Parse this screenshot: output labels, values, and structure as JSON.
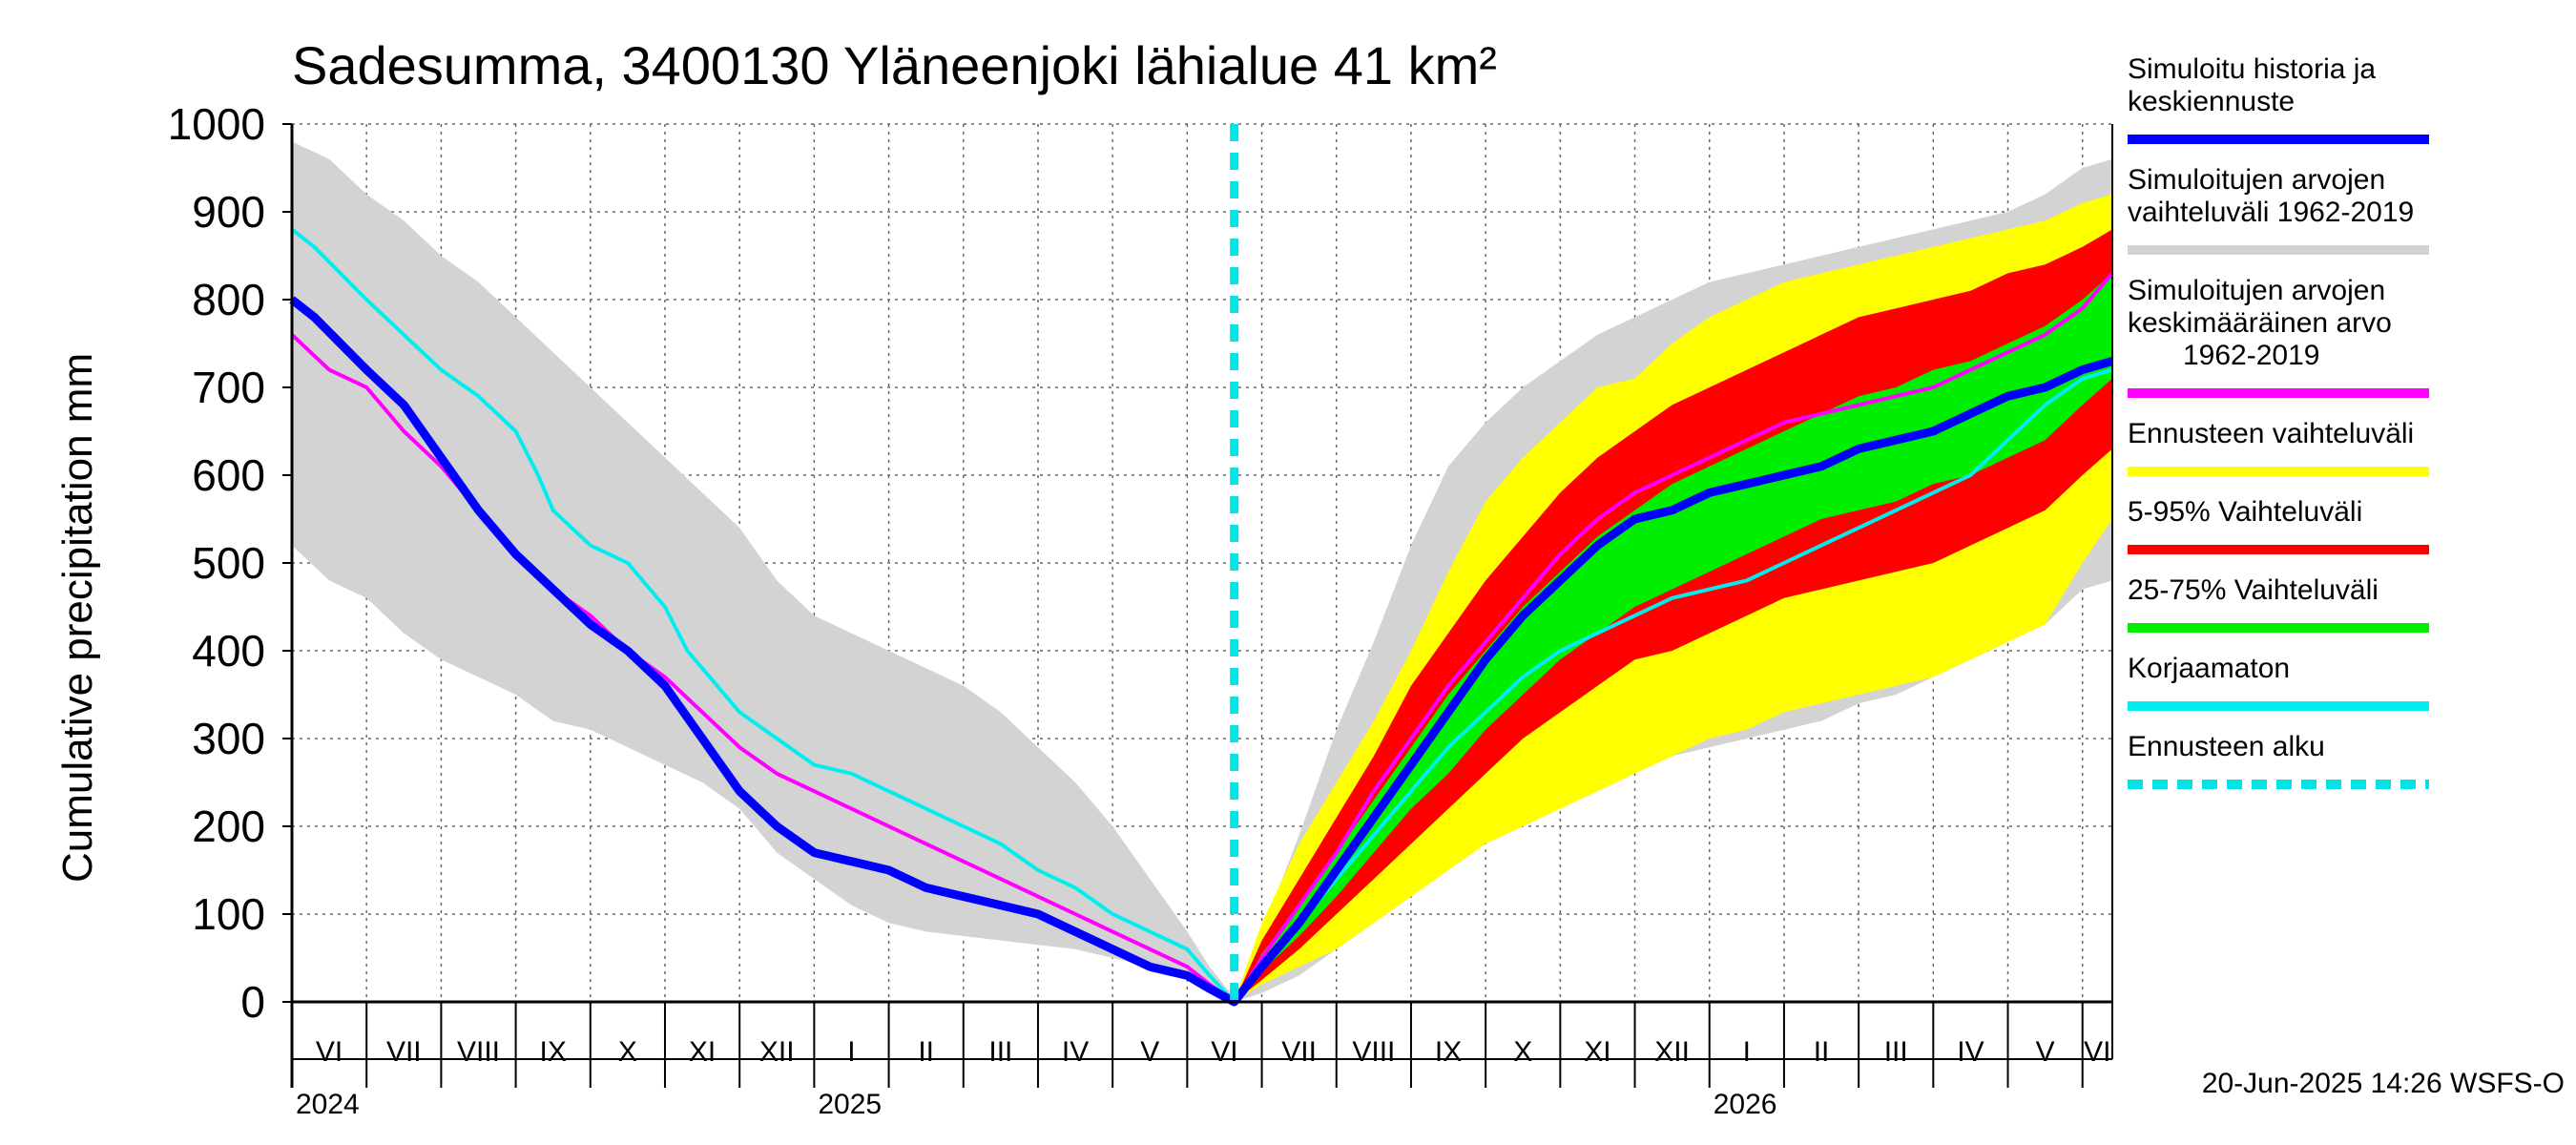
{
  "chart_data": {
    "type": "area",
    "title": "Sadesumma, 3400130 Yläneenjoki lähialue 41 km²",
    "ylabel": "Cumulative precipitation   mm",
    "xlabel": "",
    "ylim": [
      0,
      1000
    ],
    "yticks": [
      0,
      100,
      200,
      300,
      400,
      500,
      600,
      700,
      800,
      900,
      1000
    ],
    "grid": true,
    "legend_position": "right",
    "x_unit": "months since 2024-06-01 (18 months ≈ forecast start 20-Jun-2025 = 12.63)",
    "x_range": [
      0,
      24.4
    ],
    "months": [
      "VI",
      "VII",
      "VIII",
      "IX",
      "X",
      "XI",
      "XII",
      "I",
      "II",
      "III",
      "IV",
      "V",
      "VI",
      "VII",
      "VIII",
      "IX",
      "X",
      "XI",
      "XII",
      "I",
      "II",
      "III",
      "IV",
      "V",
      "VI"
    ],
    "years": [
      {
        "label": "2024",
        "month_index": 0
      },
      {
        "label": "2025",
        "month_index": 7
      },
      {
        "label": "2026",
        "month_index": 19
      }
    ],
    "forecast_start_x": 12.63,
    "series": [
      {
        "name": "Simuloitujen arvojen vaihteluväli 1962-2019",
        "kind": "band",
        "color": "#d3d3d3",
        "x": [
          0,
          0.5,
          1,
          1.5,
          2,
          2.5,
          3,
          3.5,
          4,
          4.5,
          5,
          5.5,
          6,
          6.5,
          7,
          7.5,
          8,
          8.5,
          9,
          9.5,
          10,
          10.5,
          11,
          11.5,
          12,
          12.3,
          12.63,
          13,
          13.5,
          14,
          14.5,
          15,
          15.5,
          16,
          16.5,
          17,
          17.5,
          18,
          18.5,
          19,
          19.5,
          20,
          20.5,
          21,
          21.5,
          22,
          22.5,
          23,
          23.5,
          24,
          24.4
        ],
        "upper": [
          980,
          960,
          920,
          890,
          850,
          820,
          780,
          740,
          700,
          660,
          620,
          580,
          540,
          480,
          440,
          420,
          400,
          380,
          360,
          330,
          290,
          250,
          200,
          140,
          80,
          40,
          5,
          80,
          190,
          310,
          410,
          520,
          610,
          660,
          700,
          730,
          760,
          780,
          800,
          820,
          830,
          840,
          850,
          860,
          870,
          880,
          890,
          900,
          920,
          950,
          960
        ],
        "lower": [
          520,
          480,
          460,
          420,
          390,
          370,
          350,
          320,
          310,
          290,
          270,
          250,
          220,
          170,
          140,
          110,
          90,
          80,
          75,
          70,
          65,
          60,
          50,
          40,
          30,
          15,
          0,
          10,
          30,
          60,
          100,
          140,
          170,
          200,
          220,
          240,
          260,
          270,
          280,
          290,
          300,
          310,
          320,
          340,
          350,
          370,
          390,
          410,
          430,
          470,
          480
        ]
      },
      {
        "name": "Ennusteen vaihteluväli",
        "kind": "band",
        "color": "#ffff00",
        "x": [
          12.63,
          13,
          13.5,
          14,
          14.5,
          15,
          15.5,
          16,
          16.5,
          17,
          17.5,
          18,
          18.5,
          19,
          19.5,
          20,
          20.5,
          21,
          21.5,
          22,
          22.5,
          23,
          23.5,
          24,
          24.4
        ],
        "upper": [
          0,
          90,
          180,
          250,
          320,
          400,
          490,
          570,
          620,
          660,
          700,
          710,
          750,
          780,
          800,
          820,
          830,
          840,
          850,
          860,
          870,
          880,
          890,
          910,
          920
        ],
        "lower": [
          0,
          20,
          40,
          60,
          90,
          120,
          150,
          180,
          200,
          220,
          240,
          260,
          280,
          300,
          310,
          330,
          340,
          350,
          360,
          370,
          390,
          410,
          430,
          500,
          550
        ]
      },
      {
        "name": "5-95% Vaihteluväli",
        "kind": "band",
        "color": "#ff0000",
        "x": [
          12.63,
          13,
          13.5,
          14,
          14.5,
          15,
          15.5,
          16,
          16.5,
          17,
          17.5,
          18,
          18.5,
          19,
          19.5,
          20,
          20.5,
          21,
          21.5,
          22,
          22.5,
          23,
          23.5,
          24,
          24.4
        ],
        "upper": [
          0,
          70,
          140,
          210,
          280,
          360,
          420,
          480,
          530,
          580,
          620,
          650,
          680,
          700,
          720,
          740,
          760,
          780,
          790,
          800,
          810,
          830,
          840,
          860,
          880
        ],
        "lower": [
          0,
          25,
          60,
          100,
          140,
          180,
          220,
          260,
          300,
          330,
          360,
          390,
          400,
          420,
          440,
          460,
          470,
          480,
          490,
          500,
          520,
          540,
          560,
          600,
          630
        ]
      },
      {
        "name": "25-75% Vaihteluväli",
        "kind": "band",
        "color": "#00ee00",
        "x": [
          12.63,
          13,
          13.5,
          14,
          14.5,
          15,
          15.5,
          16,
          16.5,
          17,
          17.5,
          18,
          18.5,
          19,
          19.5,
          20,
          20.5,
          21,
          21.5,
          22,
          22.5,
          23,
          23.5,
          24,
          24.4
        ],
        "upper": [
          0,
          55,
          110,
          170,
          230,
          290,
          350,
          400,
          450,
          490,
          530,
          560,
          590,
          610,
          630,
          650,
          670,
          690,
          700,
          720,
          730,
          750,
          770,
          800,
          830
        ],
        "lower": [
          0,
          35,
          75,
          120,
          170,
          220,
          260,
          310,
          350,
          390,
          420,
          450,
          470,
          490,
          510,
          530,
          550,
          560,
          570,
          590,
          600,
          620,
          640,
          680,
          710
        ]
      },
      {
        "name": "Simuloitujen arvojen keskimääräinen arvo 1962-2019",
        "kind": "line",
        "color": "#ff00ff",
        "width": 4,
        "x": [
          0,
          0.5,
          1,
          1.5,
          2,
          2.5,
          3,
          3.5,
          4,
          4.5,
          5,
          5.5,
          6,
          6.5,
          7,
          7.5,
          8,
          8.5,
          9,
          9.5,
          10,
          10.5,
          11,
          11.5,
          12,
          12.3,
          12.63,
          13,
          13.5,
          14,
          14.5,
          15,
          15.5,
          16,
          16.5,
          17,
          17.5,
          18,
          18.5,
          19,
          19.5,
          20,
          20.5,
          21,
          21.5,
          22,
          22.5,
          23,
          23.5,
          24,
          24.4
        ],
        "y": [
          760,
          720,
          700,
          650,
          610,
          560,
          510,
          470,
          440,
          400,
          370,
          330,
          290,
          260,
          240,
          220,
          200,
          180,
          160,
          140,
          120,
          100,
          80,
          60,
          40,
          20,
          0,
          50,
          110,
          170,
          240,
          300,
          360,
          410,
          460,
          510,
          550,
          580,
          600,
          620,
          640,
          660,
          670,
          680,
          690,
          700,
          720,
          740,
          760,
          790,
          830
        ]
      },
      {
        "name": "Korjaamaton",
        "kind": "line",
        "color": "#00eeee",
        "width": 4,
        "x": [
          0,
          0.3,
          1,
          1.5,
          2,
          2.5,
          3,
          3.3,
          3.5,
          4,
          4.5,
          5,
          5.3,
          5.5,
          6,
          6.5,
          7,
          7.5,
          8,
          8.5,
          9,
          9.5,
          10,
          10.5,
          11,
          11.5,
          12,
          12.3,
          12.63,
          13,
          13.5,
          14,
          14.5,
          15,
          15.5,
          16,
          16.5,
          17,
          17.5,
          18,
          18.5,
          19,
          19.5,
          20,
          20.5,
          21,
          21.5,
          22,
          22.5,
          23,
          23.5,
          24,
          24.4
        ],
        "y": [
          880,
          860,
          800,
          760,
          720,
          690,
          650,
          600,
          560,
          520,
          500,
          450,
          400,
          380,
          330,
          300,
          270,
          260,
          240,
          220,
          200,
          180,
          150,
          130,
          100,
          80,
          60,
          30,
          0,
          40,
          90,
          140,
          190,
          240,
          290,
          330,
          370,
          400,
          420,
          440,
          460,
          470,
          480,
          500,
          520,
          540,
          560,
          580,
          600,
          640,
          680,
          710,
          720
        ]
      },
      {
        "name": "Simuloitu historia ja keskiennuste",
        "kind": "line",
        "color": "#0000ff",
        "width": 9,
        "x": [
          0,
          0.3,
          1,
          1.5,
          2,
          2.5,
          3,
          3.5,
          4,
          4.5,
          5,
          5.5,
          6,
          6.5,
          7,
          7.5,
          8,
          8.5,
          9,
          9.5,
          10,
          10.5,
          11,
          11.5,
          12,
          12.3,
          12.63,
          13,
          13.5,
          14,
          14.5,
          15,
          15.5,
          16,
          16.5,
          17,
          17.5,
          18,
          18.5,
          19,
          19.5,
          20,
          20.5,
          21,
          21.5,
          22,
          22.5,
          23,
          23.5,
          24,
          24.4
        ],
        "y": [
          800,
          780,
          720,
          680,
          620,
          560,
          510,
          470,
          430,
          400,
          360,
          300,
          240,
          200,
          170,
          160,
          150,
          130,
          120,
          110,
          100,
          80,
          60,
          40,
          30,
          15,
          0,
          40,
          90,
          150,
          210,
          270,
          330,
          390,
          440,
          480,
          520,
          550,
          560,
          580,
          590,
          600,
          610,
          630,
          640,
          650,
          670,
          690,
          700,
          720,
          730
        ]
      },
      {
        "name": "Ennusteen alku",
        "kind": "vline",
        "color": "#00e5e5",
        "width": 9,
        "dashed": true
      }
    ]
  },
  "legend": [
    {
      "label_lines": [
        "Simuloitu historia ja",
        "keskiennuste"
      ],
      "color": "#0000ff",
      "style": "solid"
    },
    {
      "label_lines": [
        "Simuloitujen arvojen",
        "vaihteluväli 1962-2019"
      ],
      "color": "#d3d3d3",
      "style": "solid"
    },
    {
      "label_lines": [
        "Simuloitujen arvojen",
        "keskimääräinen arvo",
        "1962-2019"
      ],
      "color": "#ff00ff",
      "style": "solid"
    },
    {
      "label_lines": [
        "Ennusteen vaihteluväli"
      ],
      "color": "#ffff00",
      "style": "solid"
    },
    {
      "label_lines": [
        "5-95% Vaihteluväli"
      ],
      "color": "#ff0000",
      "style": "solid"
    },
    {
      "label_lines": [
        "25-75% Vaihteluväli"
      ],
      "color": "#00ee00",
      "style": "solid"
    },
    {
      "label_lines": [
        "Korjaamaton"
      ],
      "color": "#00eeee",
      "style": "solid"
    },
    {
      "label_lines": [
        "Ennusteen alku"
      ],
      "color": "#00e5e5",
      "style": "dashed"
    }
  ],
  "footer": "20-Jun-2025 14:26 WSFS-O"
}
